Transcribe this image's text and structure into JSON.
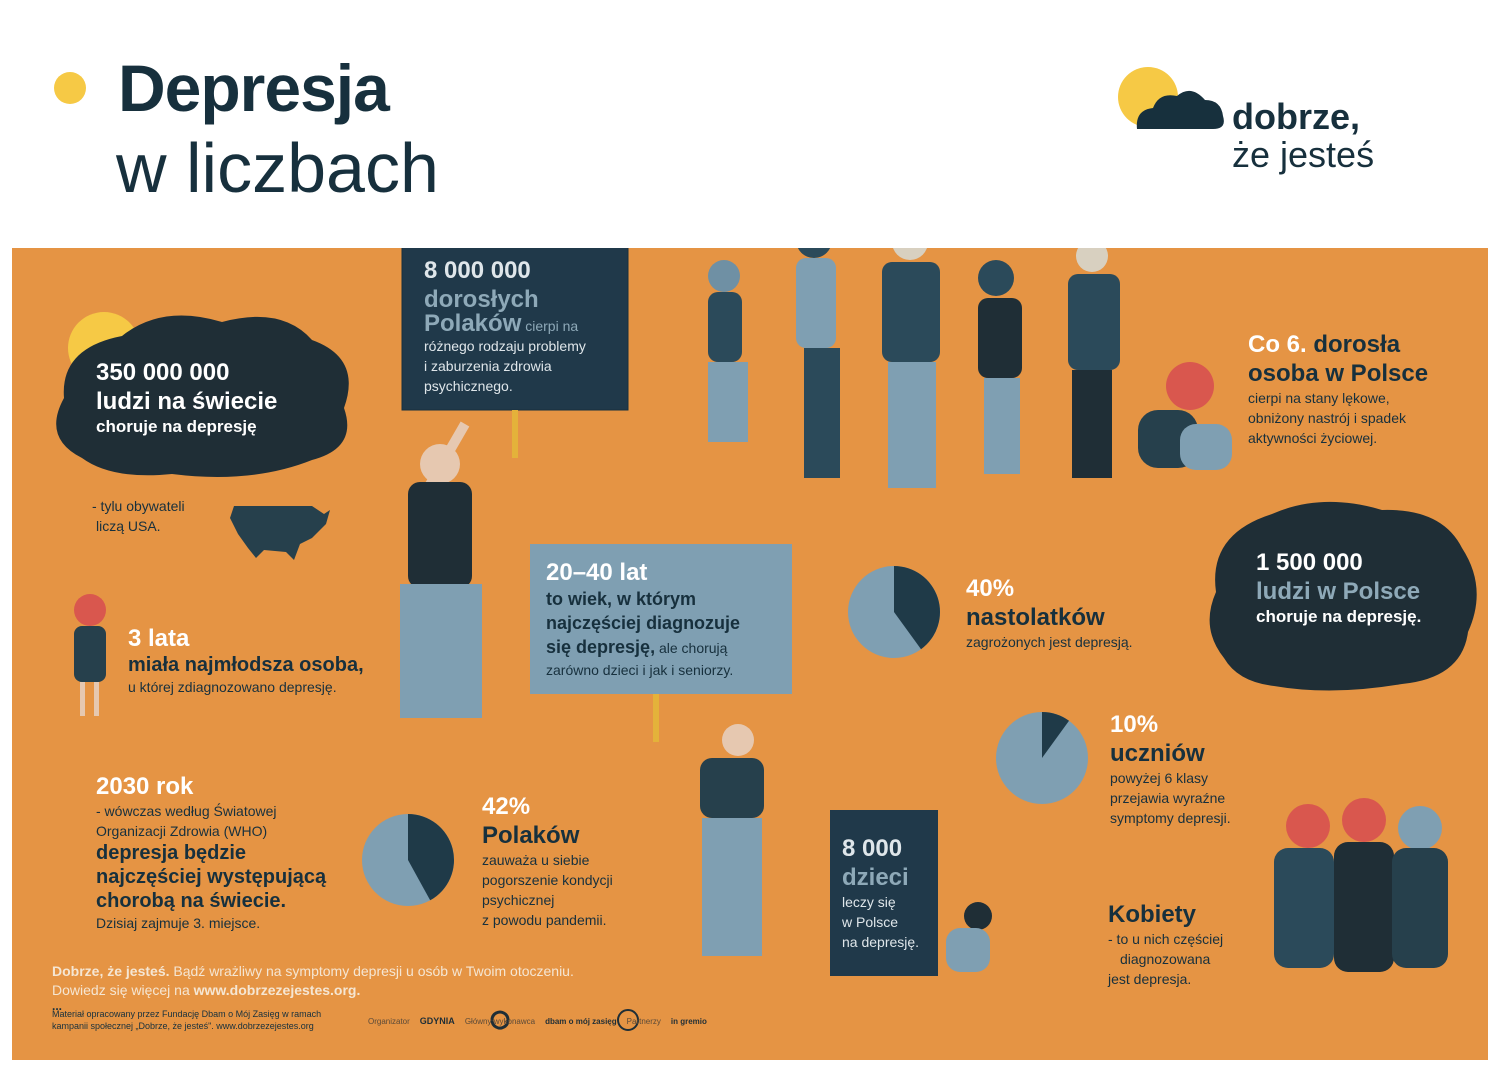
{
  "header": {
    "title_main": "Depresja",
    "title_sub": "w liczbach",
    "logo_line1": "dobrze,",
    "logo_line2": "że jesteś"
  },
  "colors": {
    "orange": "#e59444",
    "navy": "#1c3340",
    "blue": "#7f9fb2",
    "yellow": "#f6c945",
    "white": "#ffffff"
  },
  "stats": {
    "world": {
      "number": "350 000 000",
      "line1": "ludzi na świecie",
      "line2": "choruje na depresję"
    },
    "usa": {
      "line1": "-  tylu obywateli",
      "line2": "liczą USA."
    },
    "adults": {
      "number": "8 000 000",
      "line1": "dorosłych",
      "bold": "Polaków",
      "rest1": "cierpi na",
      "rest2": "różnego rodzaju problemy",
      "rest3": "i zaburzenia zdrowia",
      "rest4": "psychicznego."
    },
    "sixth": {
      "head1": "Co 6.",
      "head1b": "dorosła",
      "head2": "osoba w Polsce",
      "l1": "cierpi na stany lękowe,",
      "l2": "obniżony nastrój i spadek",
      "l3": "aktywności życiowej."
    },
    "poland": {
      "number": "1 500 000",
      "line1": "ludzi w Polsce",
      "line2": "choruje na depresję."
    },
    "youngest": {
      "number": "3 lata",
      "line1": "miała najmłodsza osoba,",
      "line2": "u której zdiagnozowano depresję."
    },
    "age": {
      "number": "20–40 lat",
      "l1": "to wiek, w którym",
      "l2": "najczęściej diagnozuje",
      "l3b": "się depresję,",
      "l3": "ale chorują",
      "l4": "zarówno dzieci i jak i seniorzy."
    },
    "teens": {
      "number": "40%",
      "line1": "nastolatków",
      "line2": "zagrożonych jest depresją.",
      "fraction": 0.4
    },
    "students": {
      "number": "10%",
      "line1": "uczniów",
      "l2": "powyżej 6 klasy",
      "l3": "przejawia wyraźne",
      "l4": "symptomy depresji.",
      "fraction": 0.1
    },
    "who": {
      "number": "2030 rok",
      "l1": "- wówczas według Światowej",
      "l2": "Organizacji Zdrowia (WHO)",
      "b1": "depresja będzie",
      "b2": "najczęściej występującą",
      "b3": "chorobą na świecie.",
      "l3": "Dzisiaj zajmuje 3. miejsce."
    },
    "pandemic": {
      "number": "42%",
      "line1": "Polaków",
      "l2": "zauważa u siebie",
      "l3": "pogorszenie kondycji",
      "l4": "psychicznej",
      "l5": "z powodu pandemii.",
      "fraction": 0.42
    },
    "children": {
      "number": "8 000",
      "line1": "dzieci",
      "l2": "leczy się",
      "l3": "w Polsce",
      "l4": "na depresję."
    },
    "women": {
      "head": "Kobiety",
      "l1": "- to u nich częściej",
      "l2": "diagnozowana",
      "l3": "jest depresja."
    }
  },
  "footer": {
    "brand": "Dobrze, że jesteś.",
    "text1": "Bądź wrażliwy na symptomy depresji u osób w Twoim otoczeniu.",
    "text2": "Dowiedz się więcej na",
    "url": "www.dobrzezejestes.org.",
    "dots": "...",
    "credit1": "Materiał opracowany przez Fundację Dbam o Mój Zasięg w ramach",
    "credit2": "kampanii społecznej „Dobrze, że jesteś\". www.dobrzezejestes.org",
    "partner1": "Organizator",
    "partner1_logo": "GDYNIA",
    "partner2": "Główny wykonawca",
    "partner2_logo": "dbam o mój zasięg",
    "partner3": "Partnerzy",
    "partner3_logo": "in gremio"
  }
}
